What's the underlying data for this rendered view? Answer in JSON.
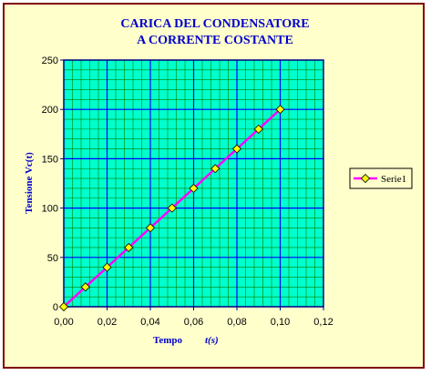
{
  "chart_data": {
    "type": "line",
    "title_line1": "CARICA DEL CONDENSATORE",
    "title_line2": "A CORRENTE COSTANTE",
    "xlabel_main": "Tempo",
    "xlabel_unit": "t(s)",
    "ylabel": "Tensione Vc(t)",
    "xlim": [
      0,
      0.12
    ],
    "ylim": [
      0,
      250
    ],
    "x_ticks": [
      "0,00",
      "0,02",
      "0,04",
      "0,06",
      "0,08",
      "0,10",
      "0,12"
    ],
    "y_ticks": [
      "0",
      "50",
      "100",
      "150",
      "200",
      "250"
    ],
    "grid": true,
    "legend_position": "right",
    "series": [
      {
        "name": "Serie1",
        "x": [
          0.0,
          0.01,
          0.02,
          0.03,
          0.04,
          0.05,
          0.06,
          0.07,
          0.08,
          0.09,
          0.1
        ],
        "y": [
          0,
          20,
          40,
          60,
          80,
          100,
          120,
          140,
          160,
          180,
          200
        ]
      }
    ],
    "colors": {
      "background": "#FFFFCC",
      "frame": "#800000",
      "plot_area": "#00FFCC",
      "minor_grid": "#008000",
      "major_grid": "#0000FF",
      "line": "#FF00FF",
      "marker": "#FFFF00",
      "title": "#0000CC"
    }
  }
}
